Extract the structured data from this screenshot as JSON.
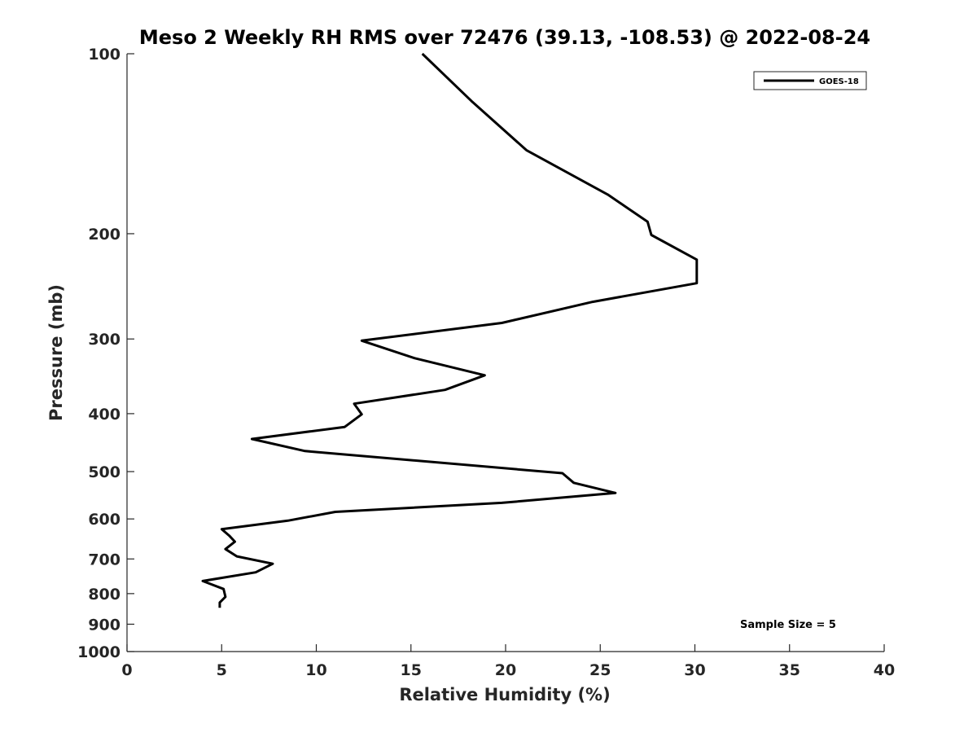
{
  "chart_data": {
    "type": "line",
    "title": "Meso 2 Weekly RH RMS over 72476 (39.13, -108.53) @ 2022-08-24",
    "xlabel": "Relative Humidity (%)",
    "ylabel": "Pressure (mb)",
    "xlim": [
      0,
      40
    ],
    "ylim": [
      1000,
      100
    ],
    "yscale": "log",
    "xticks": [
      0,
      5,
      10,
      15,
      20,
      25,
      30,
      35,
      40
    ],
    "yticks": [
      100,
      200,
      300,
      400,
      500,
      600,
      700,
      800,
      900,
      1000
    ],
    "grid": false,
    "legend": "top-right",
    "annotation": "Sample Size = 5",
    "series": [
      {
        "name": "GOES-18",
        "color": "#000000",
        "points": [
          [
            15.6,
            100
          ],
          [
            18.2,
            120
          ],
          [
            21.1,
            145
          ],
          [
            25.4,
            172
          ],
          [
            27.5,
            191
          ],
          [
            27.7,
            201
          ],
          [
            30.1,
            221
          ],
          [
            30.1,
            242
          ],
          [
            24.6,
            260
          ],
          [
            19.8,
            282
          ],
          [
            12.4,
            302
          ],
          [
            15.2,
            323
          ],
          [
            18.9,
            345
          ],
          [
            16.8,
            365
          ],
          [
            12.0,
            385
          ],
          [
            12.4,
            401
          ],
          [
            11.5,
            421
          ],
          [
            6.6,
            441
          ],
          [
            9.4,
            462
          ],
          [
            23.0,
            503
          ],
          [
            23.6,
            522
          ],
          [
            25.8,
            543
          ],
          [
            19.8,
            564
          ],
          [
            11.0,
            584
          ],
          [
            8.5,
            604
          ],
          [
            5.0,
            624
          ],
          [
            5.4,
            640
          ],
          [
            5.7,
            655
          ],
          [
            5.2,
            674
          ],
          [
            5.8,
            693
          ],
          [
            7.7,
            713
          ],
          [
            6.8,
            737
          ],
          [
            4.0,
            762
          ],
          [
            5.1,
            786
          ],
          [
            5.2,
            810
          ],
          [
            4.9,
            828
          ],
          [
            4.9,
            845
          ]
        ]
      }
    ]
  }
}
